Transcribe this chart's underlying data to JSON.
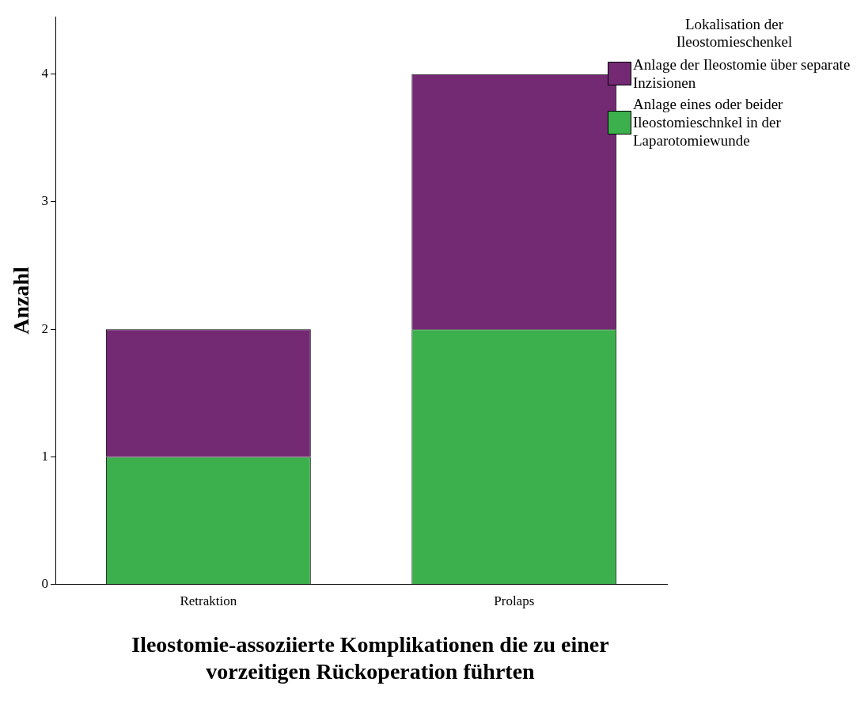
{
  "chart_data": {
    "type": "bar",
    "stacked": true,
    "xlabel": "Ileostomie-assoziierte Komplikationen die zu einer vorzeitigen Rückoperation führten",
    "ylabel": "Anzahl",
    "legend_title": "Lokalisation der Ileostomieschenkel",
    "legend": "top right",
    "categories": [
      "Retraktion",
      "Prolaps"
    ],
    "series": [
      {
        "name": "Anlage eines oder beider Ileostomieschnkel in der Laparotomiewunde",
        "color": "#3cb04c",
        "values": [
          1,
          2
        ]
      },
      {
        "name": "Anlage der Ileostomie über separate Inzisionen",
        "color": "#732a73",
        "values": [
          1,
          2
        ]
      }
    ],
    "ylim": [
      0,
      4.45
    ],
    "yticks": [
      0,
      1,
      2,
      3,
      4
    ],
    "grid": false
  }
}
